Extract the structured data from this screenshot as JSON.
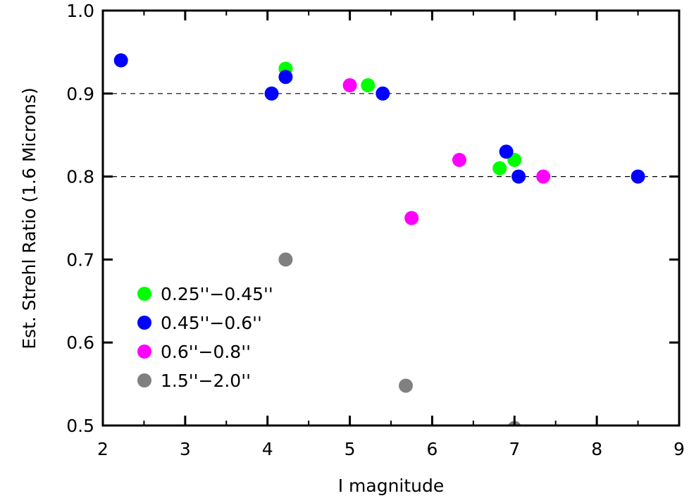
{
  "chart_data": {
    "type": "scatter",
    "xlabel": "I magnitude",
    "ylabel": "Est. Strehl Ratio (1.6 Microns)",
    "xlim": [
      2,
      9
    ],
    "ylim": [
      0.5,
      1.0
    ],
    "xticks": [
      "2",
      "3",
      "4",
      "5",
      "6",
      "7",
      "8",
      "9"
    ],
    "yticks": [
      "0.5",
      "0.6",
      "0.7",
      "0.8",
      "0.9",
      "1.0"
    ],
    "reference_lines": [
      0.9,
      0.8
    ],
    "grid": false,
    "legend_position": "bottom-left",
    "series": [
      {
        "name": "0.25''−0.45''",
        "color": "#00ff00",
        "points": [
          {
            "x": 4.22,
            "y": 0.93
          },
          {
            "x": 5.22,
            "y": 0.91
          },
          {
            "x": 6.82,
            "y": 0.81
          },
          {
            "x": 7.0,
            "y": 0.82
          }
        ]
      },
      {
        "name": "0.45''−0.6''",
        "color": "#0000ff",
        "points": [
          {
            "x": 2.22,
            "y": 0.94
          },
          {
            "x": 4.05,
            "y": 0.9
          },
          {
            "x": 4.22,
            "y": 0.92
          },
          {
            "x": 5.4,
            "y": 0.9
          },
          {
            "x": 6.9,
            "y": 0.83
          },
          {
            "x": 7.05,
            "y": 0.8
          },
          {
            "x": 8.5,
            "y": 0.8
          }
        ]
      },
      {
        "name": "0.6''−0.8''",
        "color": "#ff00ff",
        "points": [
          {
            "x": 5.0,
            "y": 0.91
          },
          {
            "x": 5.75,
            "y": 0.75
          },
          {
            "x": 6.33,
            "y": 0.82
          },
          {
            "x": 7.35,
            "y": 0.8
          }
        ]
      },
      {
        "name": "1.5''−2.0''",
        "color": "#808080",
        "points": [
          {
            "x": 4.22,
            "y": 0.7
          },
          {
            "x": 5.68,
            "y": 0.548
          },
          {
            "x": 7.0,
            "y": 0.497
          }
        ]
      }
    ]
  }
}
